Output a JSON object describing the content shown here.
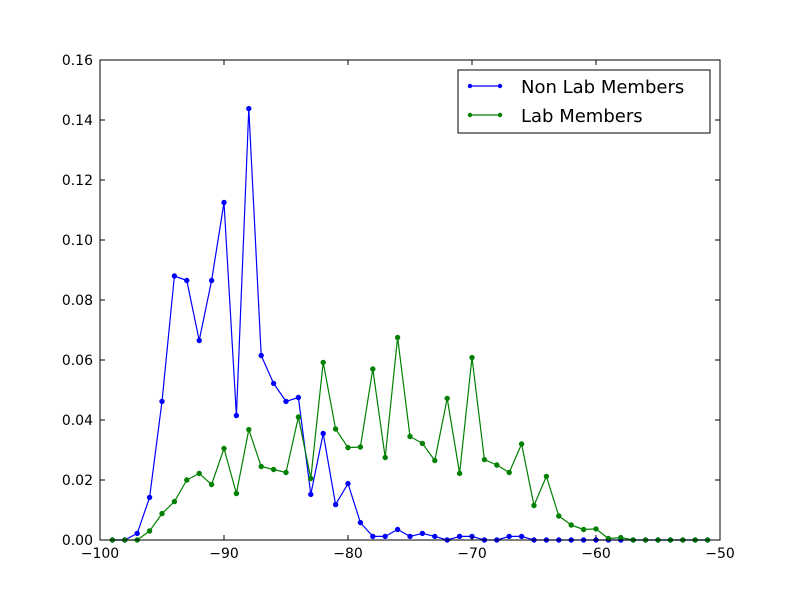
{
  "chart_data": {
    "type": "line",
    "title": "",
    "xlabel": "",
    "ylabel": "",
    "xlim": [
      -100,
      -50
    ],
    "ylim": [
      0,
      0.16
    ],
    "x_ticks": [
      -100,
      -90,
      -80,
      -70,
      -60,
      -50
    ],
    "x_tick_labels": [
      "−100",
      "−90",
      "−80",
      "−70",
      "−60",
      "−50"
    ],
    "y_ticks": [
      0,
      0.02,
      0.04,
      0.06,
      0.08,
      0.1,
      0.12,
      0.14,
      0.16
    ],
    "y_tick_labels": [
      "0.00",
      "0.02",
      "0.04",
      "0.06",
      "0.08",
      "0.10",
      "0.12",
      "0.14",
      "0.16"
    ],
    "grid": false,
    "legend_position": "top-right",
    "series": [
      {
        "name": "Non Lab Members",
        "color": "#0000ff",
        "x": [
          -99,
          -98,
          -97,
          -96,
          -95,
          -94,
          -93,
          -92,
          -91,
          -90,
          -89,
          -88,
          -87,
          -86,
          -85,
          -84,
          -83,
          -82,
          -81,
          -80,
          -79,
          -78,
          -77,
          -76,
          -75,
          -74,
          -73,
          -72,
          -71,
          -70,
          -69,
          -68,
          -67,
          -66,
          -65,
          -64,
          -63,
          -62,
          -61,
          -60,
          -59,
          -58,
          -57,
          -56,
          -55,
          -54,
          -53,
          -52,
          -51
        ],
        "y": [
          0,
          0,
          0.0022,
          0.0142,
          0.0462,
          0.088,
          0.0865,
          0.0665,
          0.0865,
          0.1125,
          0.0415,
          0.1438,
          0.0615,
          0.0522,
          0.0462,
          0.0475,
          0.0152,
          0.0355,
          0.0118,
          0.0188,
          0.0058,
          0.0012,
          0.0012,
          0.0035,
          0.0012,
          0.0022,
          0.0012,
          0,
          0.0012,
          0.0012,
          0,
          0,
          0.0012,
          0.0012,
          0,
          0,
          0,
          0,
          0,
          0,
          0,
          0,
          0,
          0,
          0,
          0,
          0,
          0,
          0
        ]
      },
      {
        "name": "Lab Members",
        "color": "#008000",
        "x": [
          -99,
          -98,
          -97,
          -96,
          -95,
          -94,
          -93,
          -92,
          -91,
          -90,
          -89,
          -88,
          -87,
          -86,
          -85,
          -84,
          -83,
          -82,
          -81,
          -80,
          -79,
          -78,
          -77,
          -76,
          -75,
          -74,
          -73,
          -72,
          -71,
          -70,
          -69,
          -68,
          -67,
          -66,
          -65,
          -64,
          -63,
          -62,
          -61,
          -60,
          -59,
          -58,
          -57,
          -56,
          -55,
          -54,
          -53,
          -52,
          -51
        ],
        "y": [
          0,
          0,
          0,
          0.003,
          0.0088,
          0.0128,
          0.02,
          0.0222,
          0.0185,
          0.0305,
          0.0155,
          0.0368,
          0.0245,
          0.0235,
          0.0225,
          0.041,
          0.0205,
          0.0592,
          0.037,
          0.0308,
          0.031,
          0.057,
          0.0275,
          0.0675,
          0.0345,
          0.0322,
          0.0265,
          0.0472,
          0.0222,
          0.0608,
          0.0268,
          0.025,
          0.0225,
          0.032,
          0.0115,
          0.0212,
          0.008,
          0.005,
          0.0035,
          0.0037,
          0.0005,
          0.0008,
          0,
          0,
          0,
          0,
          0,
          0,
          0
        ]
      }
    ]
  }
}
